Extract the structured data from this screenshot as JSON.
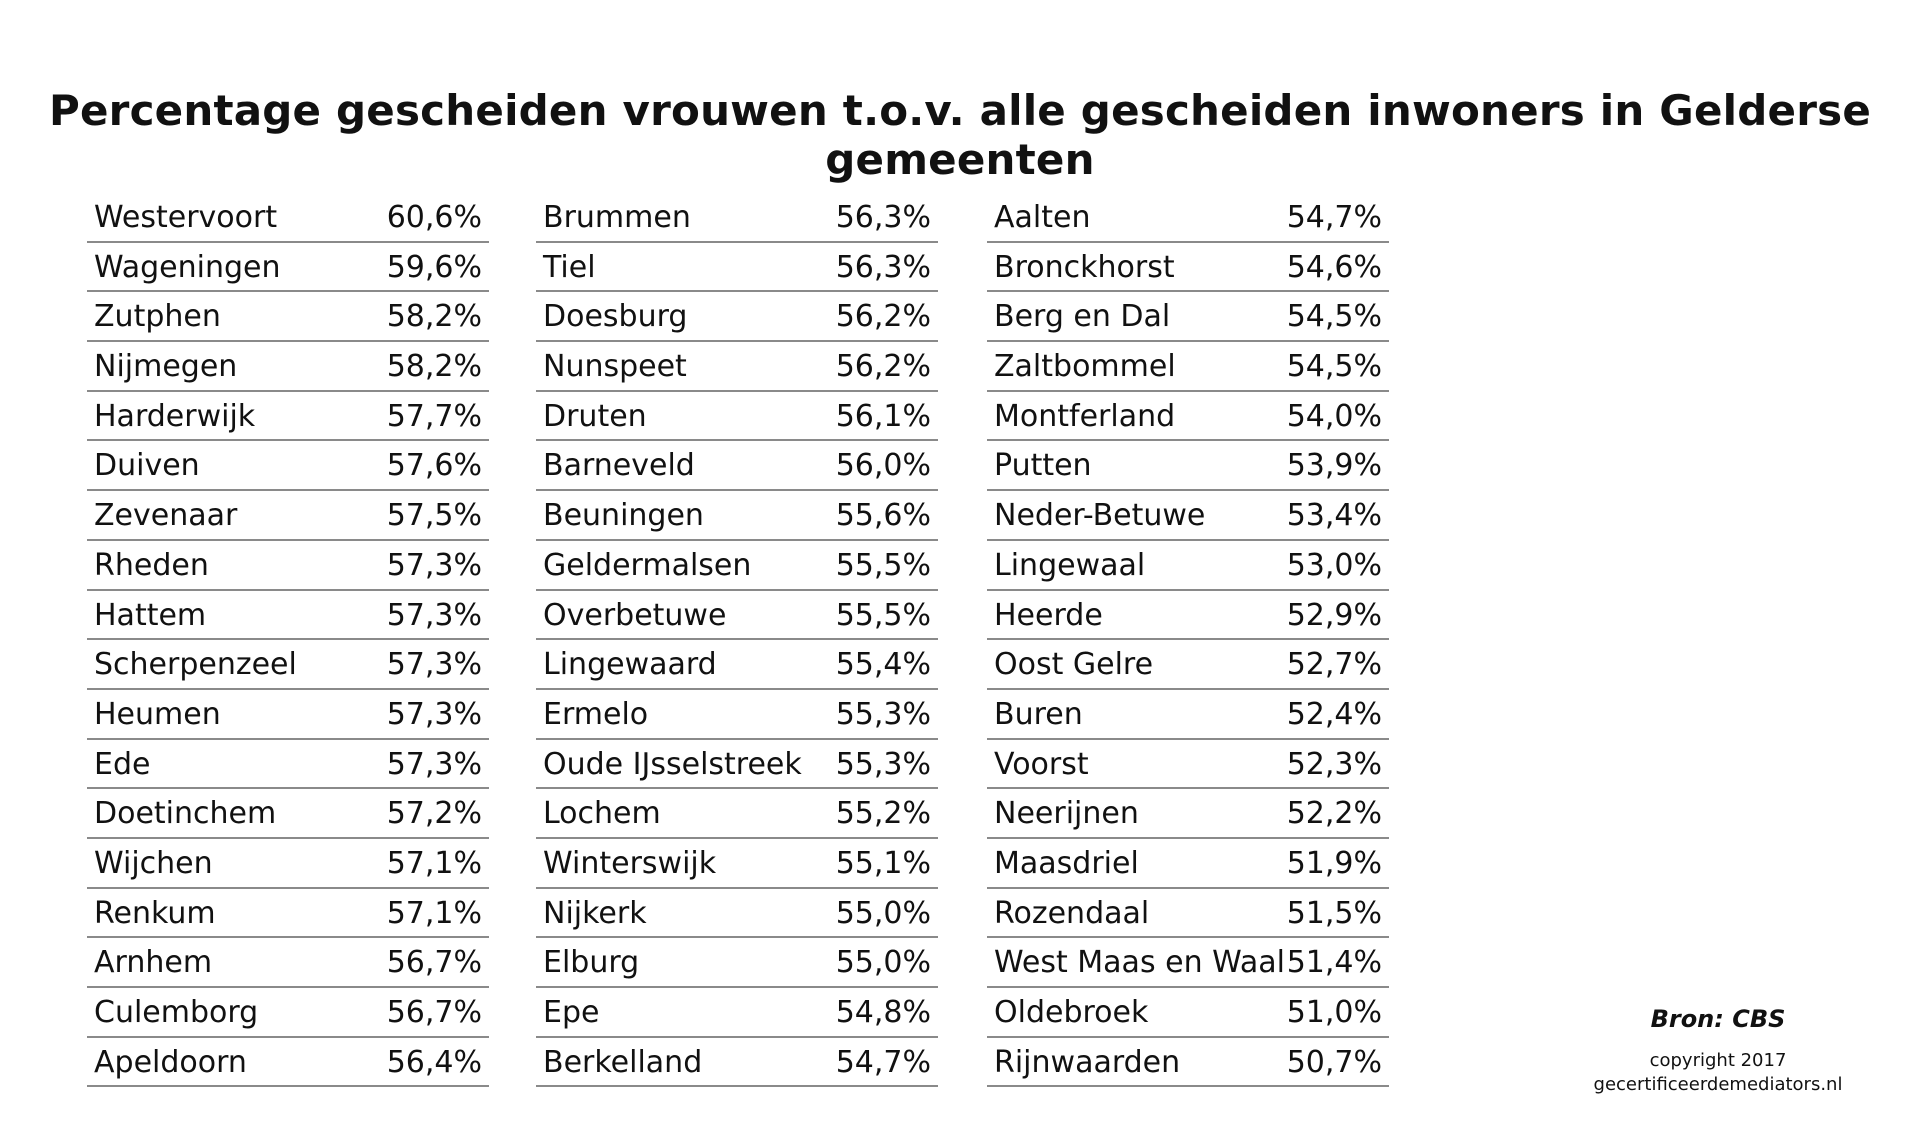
{
  "header": {
    "title": "Percentage gescheiden vrouwen t.o.v. alle gescheiden inwoners in Gelderse gemeenten"
  },
  "table": {
    "columns": [
      {
        "rows": [
          [
            "Westervoort",
            "60,6%"
          ],
          [
            "Wageningen",
            "59,6%"
          ],
          [
            "Zutphen",
            "58,2%"
          ],
          [
            "Nijmegen",
            "58,2%"
          ],
          [
            "Harderwijk",
            "57,7%"
          ],
          [
            "Duiven",
            "57,6%"
          ],
          [
            "Zevenaar",
            "57,5%"
          ],
          [
            "Rheden",
            "57,3%"
          ],
          [
            "Hattem",
            "57,3%"
          ],
          [
            "Scherpenzeel",
            "57,3%"
          ],
          [
            "Heumen",
            "57,3%"
          ],
          [
            "Ede",
            "57,3%"
          ],
          [
            "Doetinchem",
            "57,2%"
          ],
          [
            "Wijchen",
            "57,1%"
          ],
          [
            "Renkum",
            "57,1%"
          ],
          [
            "Arnhem",
            "56,7%"
          ],
          [
            "Culemborg",
            "56,7%"
          ],
          [
            "Apeldoorn",
            "56,4%"
          ]
        ]
      },
      {
        "rows": [
          [
            "Brummen",
            "56,3%"
          ],
          [
            "Tiel",
            "56,3%"
          ],
          [
            "Doesburg",
            "56,2%"
          ],
          [
            "Nunspeet",
            "56,2%"
          ],
          [
            "Druten",
            "56,1%"
          ],
          [
            "Barneveld",
            "56,0%"
          ],
          [
            "Beuningen",
            "55,6%"
          ],
          [
            "Geldermalsen",
            "55,5%"
          ],
          [
            "Overbetuwe",
            "55,5%"
          ],
          [
            "Lingewaard",
            "55,4%"
          ],
          [
            "Ermelo",
            "55,3%"
          ],
          [
            "Oude IJsselstreek",
            "55,3%"
          ],
          [
            "Lochem",
            "55,2%"
          ],
          [
            "Winterswijk",
            "55,1%"
          ],
          [
            "Nijkerk",
            "55,0%"
          ],
          [
            "Elburg",
            "55,0%"
          ],
          [
            "Epe",
            "54,8%"
          ],
          [
            "Berkelland",
            "54,7%"
          ]
        ]
      },
      {
        "rows": [
          [
            "Aalten",
            "54,7%"
          ],
          [
            "Bronckhorst",
            "54,6%"
          ],
          [
            "Berg en Dal",
            "54,5%"
          ],
          [
            "Zaltbommel",
            "54,5%"
          ],
          [
            "Montferland",
            "54,0%"
          ],
          [
            "Putten",
            "53,9%"
          ],
          [
            "Neder-Betuwe",
            "53,4%"
          ],
          [
            "Lingewaal",
            "53,0%"
          ],
          [
            "Heerde",
            "52,9%"
          ],
          [
            "Oost Gelre",
            "52,7%"
          ],
          [
            "Buren",
            "52,4%"
          ],
          [
            "Voorst",
            "52,3%"
          ],
          [
            "Neerijnen",
            "52,2%"
          ],
          [
            "Maasdriel",
            "51,9%"
          ],
          [
            "Rozendaal",
            "51,5%"
          ],
          [
            "West Maas en Waal",
            "51,4%"
          ],
          [
            "Oldebroek",
            "51,0%"
          ],
          [
            "Rijnwaarden",
            "50,7%"
          ]
        ]
      }
    ]
  },
  "footer": {
    "source": "Bron: CBS",
    "copyright": "copyright 2017",
    "website": "gecertificeerdemediators.nl"
  }
}
